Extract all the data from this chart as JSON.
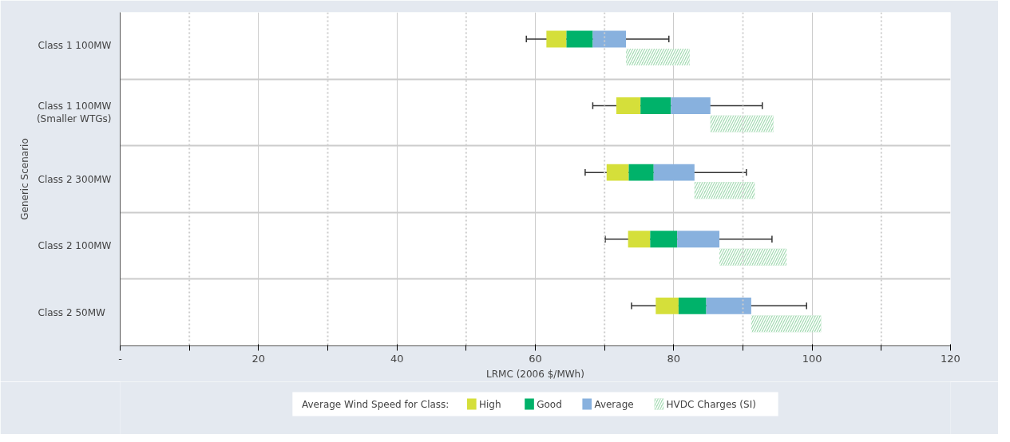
{
  "chart_data": {
    "type": "bar",
    "orientation": "horizontal",
    "categories": [
      "Class 1 100MW",
      "Class 1 100MW\n(Smaller WTGs)",
      "Class 2 300MW",
      "Class 2 100MW",
      "Class 2   50MW"
    ],
    "series": [
      {
        "name": "High",
        "color": "#d5df3a",
        "base": [
          61.6,
          71.7,
          70.3,
          73.4,
          77.4
        ],
        "values": [
          2.9,
          3.5,
          3.2,
          3.2,
          3.3
        ],
        "errors": [
          [
            58.7,
            79.3
          ],
          [
            68.3,
            92.8
          ],
          [
            67.2,
            90.5
          ],
          [
            70.1,
            94.2
          ],
          [
            73.9,
            99.2
          ]
        ]
      },
      {
        "name": "Good",
        "color": "#00b26a",
        "base": [
          64.5,
          75.2,
          73.5,
          76.6,
          80.7
        ],
        "values": [
          3.8,
          4.4,
          3.6,
          3.9,
          4.0
        ]
      },
      {
        "name": "Average",
        "color": "#88b1de",
        "base": [
          68.3,
          79.6,
          77.1,
          80.5,
          84.7
        ],
        "values": [
          4.8,
          5.7,
          5.9,
          6.1,
          6.5
        ]
      },
      {
        "name": "HVDC Charges (SI)",
        "color": "#a8dcb6",
        "base": [
          73.1,
          85.3,
          83.0,
          86.6,
          91.2
        ],
        "values": [
          9.2,
          9.1,
          8.7,
          9.7,
          10.1
        ]
      }
    ],
    "xlim": [
      0,
      120
    ],
    "xticks": [
      {
        "value": 0,
        "label": "-"
      },
      {
        "value": 10,
        "label": null
      },
      20,
      {
        "value": 30,
        "label": null
      },
      40,
      {
        "value": 50,
        "label": null
      },
      60,
      {
        "value": 70,
        "label": null
      },
      80,
      {
        "value": 90,
        "label": null
      },
      100,
      {
        "value": 110,
        "label": null
      },
      120
    ],
    "xlabel": "LRMC (2006 $/MWh)",
    "ylabel": "Generic Scenario",
    "legend_title": "Average Wind Speed for Class:",
    "legend": "bottom",
    "grid": true
  }
}
